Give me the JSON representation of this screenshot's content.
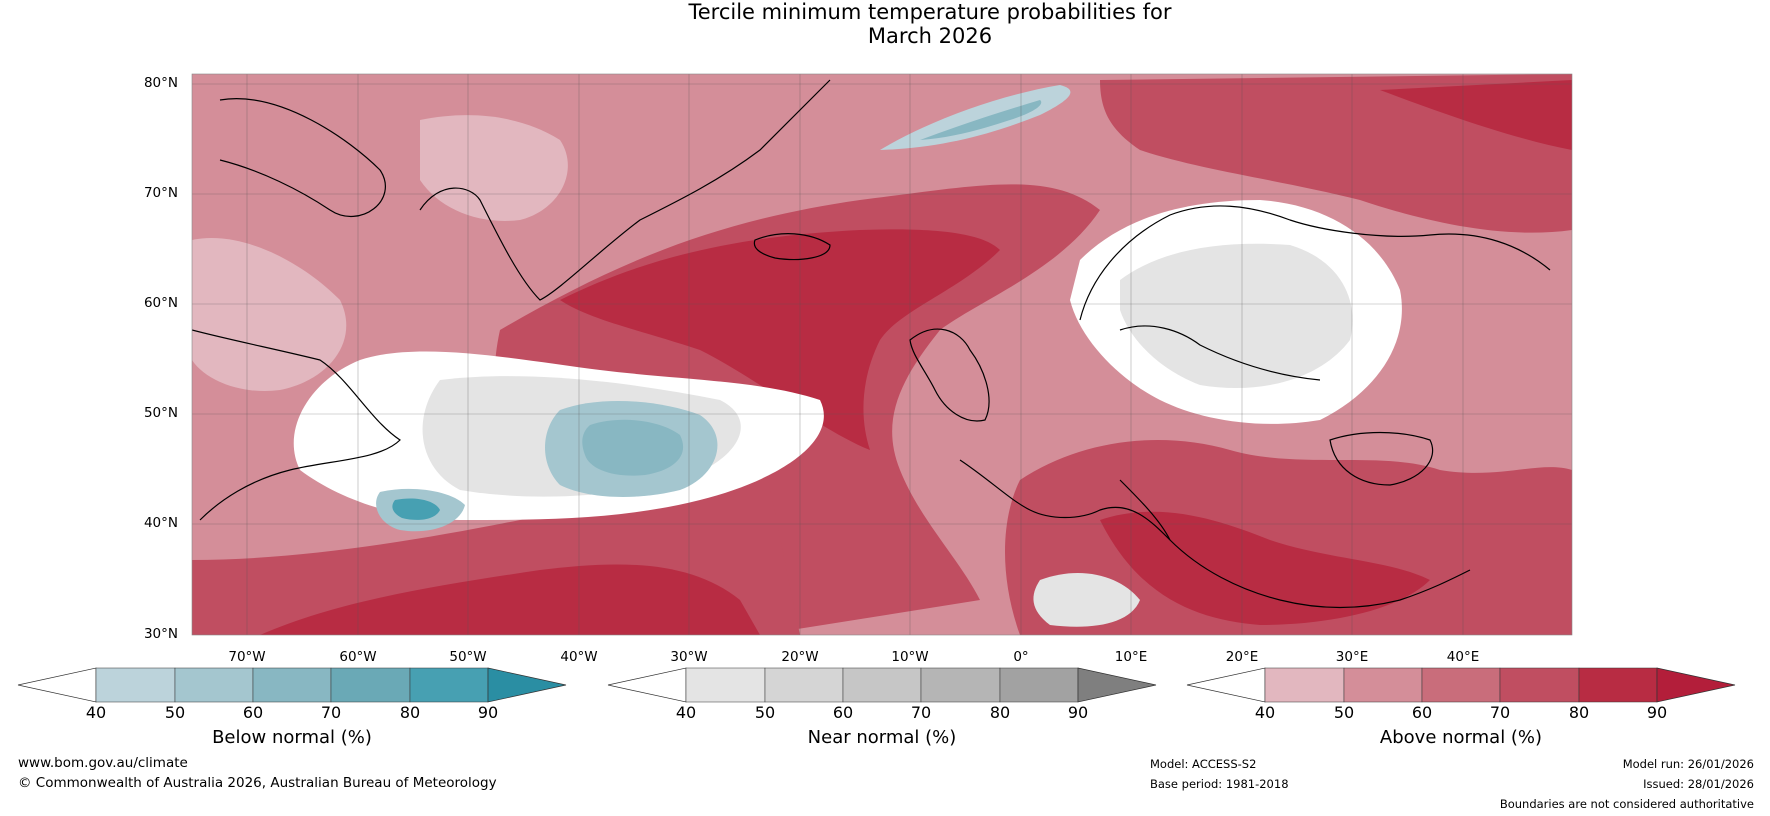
{
  "title": {
    "line1": "Tercile minimum temperature probabilities for",
    "line2": "March 2026"
  },
  "map": {
    "lat_labels": [
      "80°N",
      "70°N",
      "60°N",
      "50°N",
      "40°N",
      "30°N"
    ],
    "lon_labels": [
      "70°W",
      "60°W",
      "50°W",
      "40°W",
      "30°W",
      "20°W",
      "10°W",
      "0°",
      "10°E",
      "20°E",
      "30°E",
      "40°E"
    ]
  },
  "colorbars": [
    {
      "title": "Below normal (%)",
      "ticks": [
        "40",
        "50",
        "60",
        "70",
        "80",
        "90"
      ],
      "colors": [
        "#ffffff",
        "#bcd3db",
        "#a4c6cf",
        "#88b7c2",
        "#6aa9b6",
        "#47a0b2",
        "#2a8ea3"
      ]
    },
    {
      "title": "Near normal (%)",
      "ticks": [
        "40",
        "50",
        "60",
        "70",
        "80",
        "90"
      ],
      "colors": [
        "#ffffff",
        "#e4e4e4",
        "#d5d5d5",
        "#c6c6c6",
        "#b5b5b5",
        "#a2a2a2",
        "#7f7f7f"
      ]
    },
    {
      "title": "Above normal (%)",
      "ticks": [
        "40",
        "50",
        "60",
        "70",
        "80",
        "90"
      ],
      "colors": [
        "#ffffff",
        "#e2b7bf",
        "#d48e99",
        "#c96d7b",
        "#c04e61",
        "#b82c43",
        "#b31e3a"
      ]
    }
  ],
  "footer": {
    "website": "www.bom.gov.au/climate",
    "copyright": "© Commonwealth of Australia 2026, Australian Bureau of Meteorology",
    "model": "Model: ACCESS-S2",
    "base_period": "Base period: 1981-2018",
    "model_run": "Model run: 26/01/2026",
    "issued": "Issued: 28/01/2026",
    "disclaimer": "Boundaries are not considered authoritative"
  }
}
